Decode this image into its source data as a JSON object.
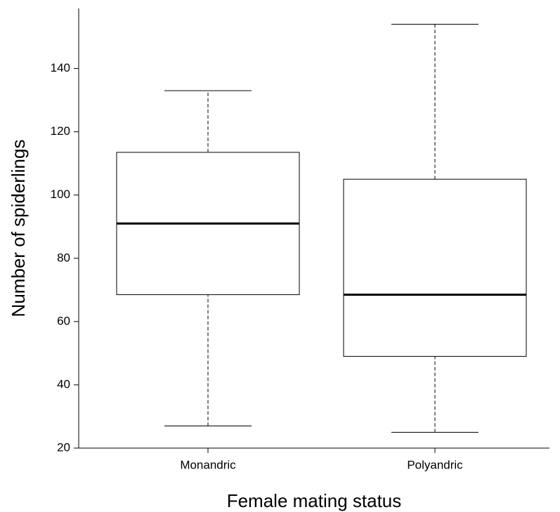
{
  "chart_data": {
    "type": "box",
    "xlabel": "Female mating status",
    "ylabel": "Number of spiderlings",
    "categories": [
      "Monandric",
      "Polyandric"
    ],
    "whisker_low": [
      27,
      25
    ],
    "q1": [
      68.5,
      49
    ],
    "median": [
      91,
      68.5
    ],
    "q3": [
      113.5,
      105
    ],
    "whisker_high": [
      133,
      154
    ],
    "ylim": [
      20,
      159
    ],
    "yticks": [
      20,
      40,
      60,
      80,
      100,
      120,
      140
    ],
    "color": "#000000"
  }
}
